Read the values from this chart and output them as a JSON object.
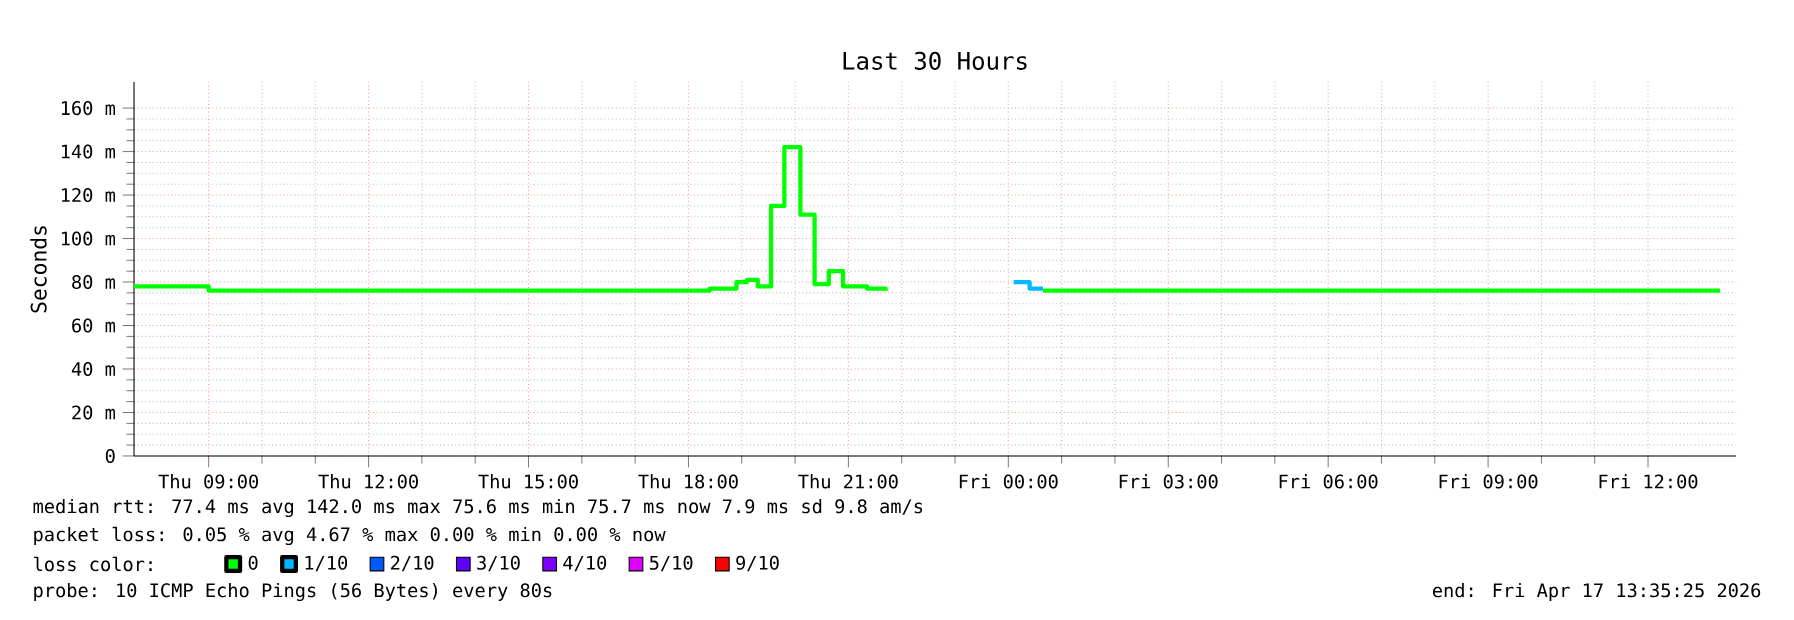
{
  "chart_data": {
    "type": "step",
    "title": "Last 30 Hours",
    "ylabel": "Seconds",
    "xlim": [
      "2026-04-16T07:36",
      "2026-04-17T13:39"
    ],
    "xticks": [
      {
        "value": "2026-04-16T09:00",
        "label": "Thu 09:00"
      },
      {
        "value": "2026-04-16T12:00",
        "label": "Thu 12:00"
      },
      {
        "value": "2026-04-16T15:00",
        "label": "Thu 15:00"
      },
      {
        "value": "2026-04-16T18:00",
        "label": "Thu 18:00"
      },
      {
        "value": "2026-04-16T21:00",
        "label": "Thu 21:00"
      },
      {
        "value": "2026-04-17T00:00",
        "label": "Fri 00:00"
      },
      {
        "value": "2026-04-17T03:00",
        "label": "Fri 03:00"
      },
      {
        "value": "2026-04-17T06:00",
        "label": "Fri 06:00"
      },
      {
        "value": "2026-04-17T09:00",
        "label": "Fri 09:00"
      },
      {
        "value": "2026-04-17T12:00",
        "label": "Fri 12:00"
      }
    ],
    "ylim": [
      0,
      172
    ],
    "yticks": [
      0,
      {
        "value": 20,
        "label": "20 m"
      },
      {
        "value": 40,
        "label": "40 m"
      },
      {
        "value": 60,
        "label": "60 m"
      },
      {
        "value": 80,
        "label": "80 m"
      },
      {
        "value": 100,
        "label": "100 m"
      },
      {
        "value": 120,
        "label": "120 m"
      },
      {
        "value": 140,
        "label": "140 m"
      },
      {
        "value": 160,
        "label": "160 m"
      }
    ],
    "grid": true,
    "legend": "bottom",
    "legend_title": "loss color:",
    "marker": "none",
    "line_style": "solid",
    "series": [
      {
        "name": "0",
        "color": "#00ff00",
        "x": [
          "2026-04-16T07:36",
          "2026-04-16T09:00",
          "2026-04-16T18:24",
          "2026-04-16T18:54",
          "2026-04-16T19:06",
          "2026-04-16T19:18",
          "2026-04-16T19:33",
          "2026-04-16T19:48",
          "2026-04-16T20:06",
          "2026-04-16T20:22",
          "2026-04-16T20:38",
          "2026-04-16T20:54",
          "2026-04-16T21:21",
          "2026-04-16T21:42",
          "2026-04-17T00:06",
          "2026-04-17T00:39",
          "2026-04-17T13:21"
        ],
        "values": [
          78,
          76,
          77,
          80,
          81,
          78,
          115,
          142,
          111,
          79,
          85,
          78,
          77,
          76,
          null,
          76,
          76
        ]
      },
      {
        "name": "1/10",
        "color": "#00b8ff",
        "x": [
          "2026-04-17T00:06",
          "2026-04-17T00:24",
          "2026-04-17T00:39"
        ],
        "values": [
          80,
          77,
          77
        ]
      },
      {
        "name": "2/10",
        "color": "#0059ff"
      },
      {
        "name": "3/10",
        "color": "#5e00ff"
      },
      {
        "name": "4/10",
        "color": "#7e00ff"
      },
      {
        "name": "5/10",
        "color": "#dd00ff"
      },
      {
        "name": "9/10",
        "color": "#ff0000"
      }
    ],
    "annotations": [
      "median rtt:  77.4 ms avg  142.0 ms max  75.6 ms min  75.7 ms now  7.9 ms sd  9.8   am/s",
      "packet loss: 0.05 % avg  4.67 % max  0.00 % min  0.00 % now",
      "probe:       10 ICMP Echo Pings (56 Bytes) every 80s",
      "end: Fri Apr 17 13:35:25 2026"
    ]
  }
}
